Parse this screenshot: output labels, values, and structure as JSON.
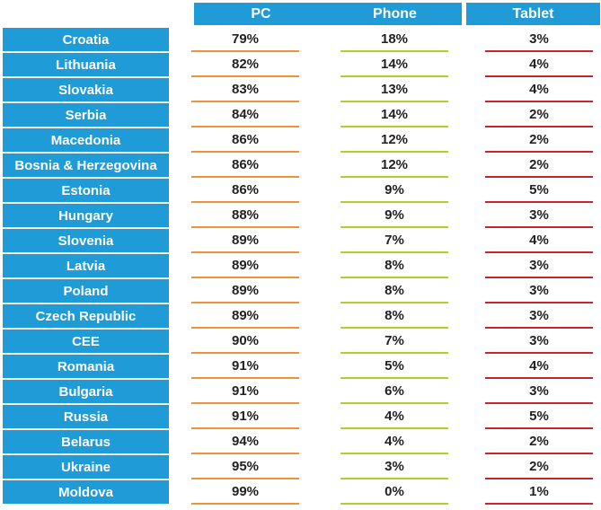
{
  "chart_data": {
    "type": "table",
    "columns": [
      "PC",
      "Phone",
      "Tablet"
    ],
    "rows": [
      {
        "country": "Croatia",
        "pc": "79%",
        "phone": "18%",
        "tablet": "3%"
      },
      {
        "country": "Lithuania",
        "pc": "82%",
        "phone": "14%",
        "tablet": "4%"
      },
      {
        "country": "Slovakia",
        "pc": "83%",
        "phone": "13%",
        "tablet": "4%"
      },
      {
        "country": "Serbia",
        "pc": "84%",
        "phone": "14%",
        "tablet": "2%"
      },
      {
        "country": "Macedonia",
        "pc": "86%",
        "phone": "12%",
        "tablet": "2%"
      },
      {
        "country": "Bosnia & Herzegovina",
        "pc": "86%",
        "phone": "12%",
        "tablet": "2%"
      },
      {
        "country": "Estonia",
        "pc": "86%",
        "phone": "9%",
        "tablet": "5%"
      },
      {
        "country": "Hungary",
        "pc": "88%",
        "phone": "9%",
        "tablet": "3%"
      },
      {
        "country": "Slovenia",
        "pc": "89%",
        "phone": "7%",
        "tablet": "4%"
      },
      {
        "country": "Latvia",
        "pc": "89%",
        "phone": "8%",
        "tablet": "3%"
      },
      {
        "country": "Poland",
        "pc": "89%",
        "phone": "8%",
        "tablet": "3%"
      },
      {
        "country": "Czech Republic",
        "pc": "89%",
        "phone": "8%",
        "tablet": "3%"
      },
      {
        "country": "CEE",
        "pc": "90%",
        "phone": "7%",
        "tablet": "3%"
      },
      {
        "country": "Romania",
        "pc": "91%",
        "phone": "5%",
        "tablet": "4%"
      },
      {
        "country": "Bulgaria",
        "pc": "91%",
        "phone": "6%",
        "tablet": "3%"
      },
      {
        "country": "Russia",
        "pc": "91%",
        "phone": "4%",
        "tablet": "5%"
      },
      {
        "country": "Belarus",
        "pc": "94%",
        "phone": "4%",
        "tablet": "2%"
      },
      {
        "country": "Ukraine",
        "pc": "95%",
        "phone": "3%",
        "tablet": "2%"
      },
      {
        "country": "Moldova",
        "pc": "99%",
        "phone": "0%",
        "tablet": "1%"
      }
    ],
    "colors": {
      "header_bg": "#1f9bd7",
      "pc_rule": "#f0923a",
      "phone_rule": "#b5cc2e",
      "tablet_rule": "#c8232f"
    }
  }
}
